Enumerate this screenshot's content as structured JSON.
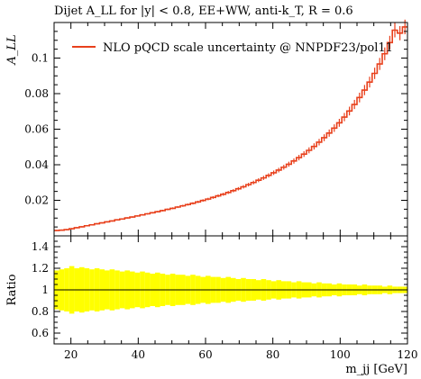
{
  "chart_data": {
    "type": "line",
    "title": "Dijet A_LL for |y| < 0.8, EE+WW, anti-k_T, R = 0.6",
    "main": {
      "ylabel": "A_LL",
      "xlim": [
        15,
        120
      ],
      "ylim": [
        0.0,
        0.12
      ],
      "yticks": [
        0.02,
        0.04,
        0.06,
        0.08,
        0.1
      ],
      "ytick_labels": [
        "0.02",
        "0.04",
        "0.06",
        "0.08",
        "0.1"
      ],
      "legend": "top-left",
      "series": [
        {
          "name": "NLO pQCD scale uncertainty @ NNPDF23/pol11",
          "color": "#e8401c",
          "bin_width": 1.5,
          "x_start": 15,
          "values": [
            0.003,
            0.0032,
            0.0035,
            0.004,
            0.0046,
            0.0051,
            0.0057,
            0.0062,
            0.0068,
            0.0073,
            0.0079,
            0.0084,
            0.009,
            0.0095,
            0.0101,
            0.0106,
            0.0112,
            0.0118,
            0.0124,
            0.013,
            0.0136,
            0.0142,
            0.0149,
            0.0155,
            0.0162,
            0.0169,
            0.0176,
            0.0183,
            0.0191,
            0.0199,
            0.0207,
            0.0216,
            0.0225,
            0.0234,
            0.0244,
            0.0254,
            0.0265,
            0.0276,
            0.0288,
            0.03,
            0.0313,
            0.0326,
            0.034,
            0.0355,
            0.037,
            0.0386,
            0.0403,
            0.0421,
            0.044,
            0.046,
            0.0481,
            0.0503,
            0.0527,
            0.0552,
            0.0578,
            0.0606,
            0.0636,
            0.0668,
            0.0702,
            0.0739,
            0.0778,
            0.082,
            0.0865,
            0.0914,
            0.0967,
            0.1024,
            0.1087,
            0.1157,
            0.114,
            0.1175
          ]
        }
      ]
    },
    "ratio": {
      "ylabel": "Ratio",
      "ylim": [
        0.5,
        1.5
      ],
      "yticks": [
        0.6,
        0.8,
        1.0,
        1.2,
        1.4
      ],
      "ytick_labels": [
        "0.6",
        "0.8",
        "1",
        "1.2",
        "1.4"
      ],
      "band_color": "#ffff00",
      "reference": 1.0,
      "half_widths": [
        0.18,
        0.19,
        0.2,
        0.22,
        0.2,
        0.21,
        0.2,
        0.19,
        0.2,
        0.19,
        0.18,
        0.19,
        0.18,
        0.17,
        0.18,
        0.17,
        0.16,
        0.17,
        0.16,
        0.15,
        0.16,
        0.15,
        0.14,
        0.15,
        0.14,
        0.14,
        0.13,
        0.14,
        0.13,
        0.12,
        0.13,
        0.12,
        0.12,
        0.11,
        0.12,
        0.11,
        0.1,
        0.11,
        0.1,
        0.1,
        0.09,
        0.1,
        0.09,
        0.08,
        0.09,
        0.08,
        0.08,
        0.07,
        0.08,
        0.07,
        0.07,
        0.06,
        0.07,
        0.06,
        0.06,
        0.05,
        0.06,
        0.05,
        0.05,
        0.05,
        0.04,
        0.05,
        0.04,
        0.04,
        0.04,
        0.03,
        0.04,
        0.03,
        0.03,
        0.03
      ]
    },
    "xlabel": "m_jj [GeV]",
    "xticks": [
      20,
      40,
      60,
      80,
      100,
      120
    ],
    "xtick_labels": [
      "20",
      "40",
      "60",
      "80",
      "100",
      "120"
    ]
  }
}
